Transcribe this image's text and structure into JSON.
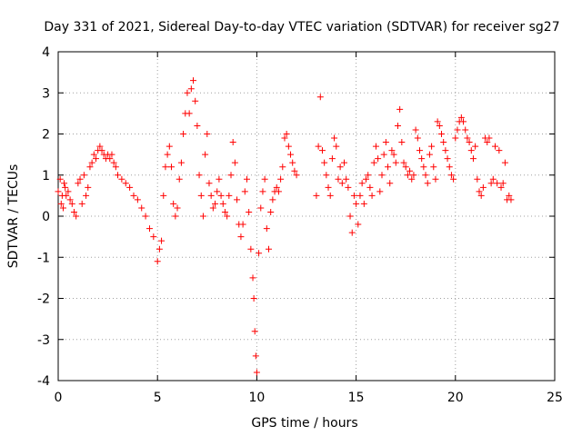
{
  "chart_data": {
    "type": "scatter",
    "title": "Day 331 of 2021, Sidereal Day-to-day VTEC variation (SDTVAR) for receiver sg27",
    "xlabel": "GPS time / hours",
    "ylabel": "SDTVAR / TECUs",
    "xlim": [
      0,
      25
    ],
    "ylim": [
      -4,
      4
    ],
    "xticks": [
      0,
      5,
      10,
      15,
      20,
      25
    ],
    "yticks": [
      -4,
      -3,
      -2,
      -1,
      0,
      1,
      2,
      3,
      4
    ],
    "xtick_labels": [
      "0",
      "5",
      "10",
      "15",
      "20",
      "25"
    ],
    "ytick_labels": [
      "-4",
      "-3",
      "-2",
      "-1",
      "0",
      "1",
      "2",
      "3",
      "4"
    ],
    "grid": true,
    "marker": "+",
    "color": "#ff0000",
    "series": [
      {
        "name": "sg27",
        "points": [
          [
            0.0,
            0.6
          ],
          [
            0.1,
            0.9
          ],
          [
            0.15,
            0.3
          ],
          [
            0.2,
            0.5
          ],
          [
            0.25,
            0.2
          ],
          [
            0.3,
            0.8
          ],
          [
            0.35,
            0.7
          ],
          [
            0.4,
            0.5
          ],
          [
            0.5,
            0.6
          ],
          [
            0.6,
            0.4
          ],
          [
            0.7,
            0.3
          ],
          [
            0.8,
            0.1
          ],
          [
            0.9,
            0.0
          ],
          [
            1.0,
            0.8
          ],
          [
            1.1,
            0.9
          ],
          [
            1.2,
            0.3
          ],
          [
            1.3,
            1.0
          ],
          [
            1.4,
            0.5
          ],
          [
            1.5,
            0.7
          ],
          [
            1.6,
            1.2
          ],
          [
            1.7,
            1.3
          ],
          [
            1.8,
            1.5
          ],
          [
            1.9,
            1.4
          ],
          [
            2.0,
            1.6
          ],
          [
            2.1,
            1.7
          ],
          [
            2.2,
            1.6
          ],
          [
            2.3,
            1.5
          ],
          [
            2.4,
            1.4
          ],
          [
            2.5,
            1.5
          ],
          [
            2.6,
            1.4
          ],
          [
            2.7,
            1.5
          ],
          [
            2.8,
            1.3
          ],
          [
            2.9,
            1.2
          ],
          [
            3.0,
            1.0
          ],
          [
            3.2,
            0.9
          ],
          [
            3.4,
            0.8
          ],
          [
            3.6,
            0.7
          ],
          [
            3.8,
            0.5
          ],
          [
            4.0,
            0.4
          ],
          [
            4.2,
            0.2
          ],
          [
            4.4,
            0.0
          ],
          [
            4.6,
            -0.3
          ],
          [
            4.8,
            -0.5
          ],
          [
            5.0,
            -1.1
          ],
          [
            5.1,
            -0.8
          ],
          [
            5.2,
            -0.6
          ],
          [
            5.3,
            0.5
          ],
          [
            5.4,
            1.2
          ],
          [
            5.5,
            1.5
          ],
          [
            5.6,
            1.7
          ],
          [
            5.7,
            1.2
          ],
          [
            5.8,
            0.3
          ],
          [
            5.9,
            0.0
          ],
          [
            6.0,
            0.2
          ],
          [
            6.1,
            0.9
          ],
          [
            6.2,
            1.3
          ],
          [
            6.3,
            2.0
          ],
          [
            6.4,
            2.5
          ],
          [
            6.5,
            3.0
          ],
          [
            6.6,
            2.5
          ],
          [
            6.7,
            3.1
          ],
          [
            6.8,
            3.3
          ],
          [
            6.9,
            2.8
          ],
          [
            7.0,
            2.2
          ],
          [
            7.1,
            1.0
          ],
          [
            7.2,
            0.5
          ],
          [
            7.3,
            0.0
          ],
          [
            7.4,
            1.5
          ],
          [
            7.5,
            2.0
          ],
          [
            7.6,
            0.8
          ],
          [
            7.7,
            0.5
          ],
          [
            7.8,
            0.2
          ],
          [
            7.9,
            0.3
          ],
          [
            8.0,
            0.6
          ],
          [
            8.1,
            0.9
          ],
          [
            8.2,
            0.5
          ],
          [
            8.3,
            0.3
          ],
          [
            8.4,
            0.1
          ],
          [
            8.5,
            0.0
          ],
          [
            8.6,
            0.5
          ],
          [
            8.7,
            1.0
          ],
          [
            8.8,
            1.8
          ],
          [
            8.9,
            1.3
          ],
          [
            9.0,
            0.4
          ],
          [
            9.1,
            -0.2
          ],
          [
            9.2,
            -0.5
          ],
          [
            9.3,
            -0.2
          ],
          [
            9.4,
            0.6
          ],
          [
            9.5,
            0.9
          ],
          [
            9.6,
            0.1
          ],
          [
            9.7,
            -0.8
          ],
          [
            9.8,
            -1.5
          ],
          [
            9.85,
            -2.0
          ],
          [
            9.9,
            -2.8
          ],
          [
            9.95,
            -3.4
          ],
          [
            10.0,
            -3.8
          ],
          [
            10.1,
            -0.9
          ],
          [
            10.2,
            0.2
          ],
          [
            10.3,
            0.6
          ],
          [
            10.4,
            0.9
          ],
          [
            10.5,
            -0.3
          ],
          [
            10.6,
            -0.8
          ],
          [
            10.7,
            0.1
          ],
          [
            10.8,
            0.4
          ],
          [
            10.9,
            0.6
          ],
          [
            11.0,
            0.7
          ],
          [
            11.1,
            0.6
          ],
          [
            11.2,
            0.9
          ],
          [
            11.3,
            1.2
          ],
          [
            11.4,
            1.9
          ],
          [
            11.5,
            2.0
          ],
          [
            11.6,
            1.7
          ],
          [
            11.7,
            1.5
          ],
          [
            11.8,
            1.3
          ],
          [
            11.9,
            1.1
          ],
          [
            12.0,
            1.0
          ],
          [
            13.0,
            0.5
          ],
          [
            13.1,
            1.7
          ],
          [
            13.2,
            2.9
          ],
          [
            13.3,
            1.6
          ],
          [
            13.4,
            1.3
          ],
          [
            13.5,
            1.0
          ],
          [
            13.6,
            0.7
          ],
          [
            13.7,
            0.5
          ],
          [
            13.8,
            1.4
          ],
          [
            13.9,
            1.9
          ],
          [
            14.0,
            1.7
          ],
          [
            14.1,
            0.9
          ],
          [
            14.2,
            1.2
          ],
          [
            14.3,
            0.8
          ],
          [
            14.4,
            1.3
          ],
          [
            14.5,
            0.9
          ],
          [
            14.6,
            0.7
          ],
          [
            14.7,
            0.0
          ],
          [
            14.8,
            -0.4
          ],
          [
            14.9,
            0.5
          ],
          [
            15.0,
            0.3
          ],
          [
            15.1,
            -0.2
          ],
          [
            15.2,
            0.5
          ],
          [
            15.3,
            0.8
          ],
          [
            15.4,
            0.3
          ],
          [
            15.5,
            0.9
          ],
          [
            15.6,
            1.0
          ],
          [
            15.7,
            0.7
          ],
          [
            15.8,
            0.5
          ],
          [
            15.9,
            1.3
          ],
          [
            16.0,
            1.7
          ],
          [
            16.1,
            1.4
          ],
          [
            16.2,
            0.6
          ],
          [
            16.3,
            1.0
          ],
          [
            16.4,
            1.5
          ],
          [
            16.5,
            1.8
          ],
          [
            16.6,
            1.2
          ],
          [
            16.7,
            0.8
          ],
          [
            16.8,
            1.6
          ],
          [
            16.9,
            1.5
          ],
          [
            17.0,
            1.3
          ],
          [
            17.1,
            2.2
          ],
          [
            17.2,
            2.6
          ],
          [
            17.3,
            1.8
          ],
          [
            17.4,
            1.3
          ],
          [
            17.5,
            1.2
          ],
          [
            17.6,
            1.0
          ],
          [
            17.7,
            1.1
          ],
          [
            17.8,
            0.9
          ],
          [
            17.9,
            1.0
          ],
          [
            18.0,
            2.1
          ],
          [
            18.1,
            1.9
          ],
          [
            18.2,
            1.6
          ],
          [
            18.3,
            1.4
          ],
          [
            18.4,
            1.2
          ],
          [
            18.5,
            1.0
          ],
          [
            18.6,
            0.8
          ],
          [
            18.7,
            1.5
          ],
          [
            18.8,
            1.7
          ],
          [
            18.9,
            1.2
          ],
          [
            19.0,
            0.9
          ],
          [
            19.1,
            2.3
          ],
          [
            19.2,
            2.2
          ],
          [
            19.3,
            2.0
          ],
          [
            19.4,
            1.8
          ],
          [
            19.5,
            1.6
          ],
          [
            19.6,
            1.4
          ],
          [
            19.7,
            1.2
          ],
          [
            19.8,
            1.0
          ],
          [
            19.9,
            0.9
          ],
          [
            20.0,
            1.9
          ],
          [
            20.1,
            2.1
          ],
          [
            20.2,
            2.3
          ],
          [
            20.3,
            2.4
          ],
          [
            20.4,
            2.3
          ],
          [
            20.5,
            2.1
          ],
          [
            20.6,
            1.9
          ],
          [
            20.7,
            1.8
          ],
          [
            20.8,
            1.6
          ],
          [
            20.9,
            1.4
          ],
          [
            21.0,
            1.7
          ],
          [
            21.1,
            0.9
          ],
          [
            21.2,
            0.6
          ],
          [
            21.3,
            0.5
          ],
          [
            21.4,
            0.7
          ],
          [
            21.5,
            1.9
          ],
          [
            21.6,
            1.8
          ],
          [
            21.7,
            1.9
          ],
          [
            21.8,
            0.8
          ],
          [
            21.9,
            0.9
          ],
          [
            22.0,
            1.7
          ],
          [
            22.1,
            0.8
          ],
          [
            22.2,
            1.6
          ],
          [
            22.3,
            0.7
          ],
          [
            22.4,
            0.8
          ],
          [
            22.5,
            1.3
          ],
          [
            22.6,
            0.4
          ],
          [
            22.7,
            0.5
          ],
          [
            22.8,
            0.4
          ]
        ]
      }
    ]
  }
}
